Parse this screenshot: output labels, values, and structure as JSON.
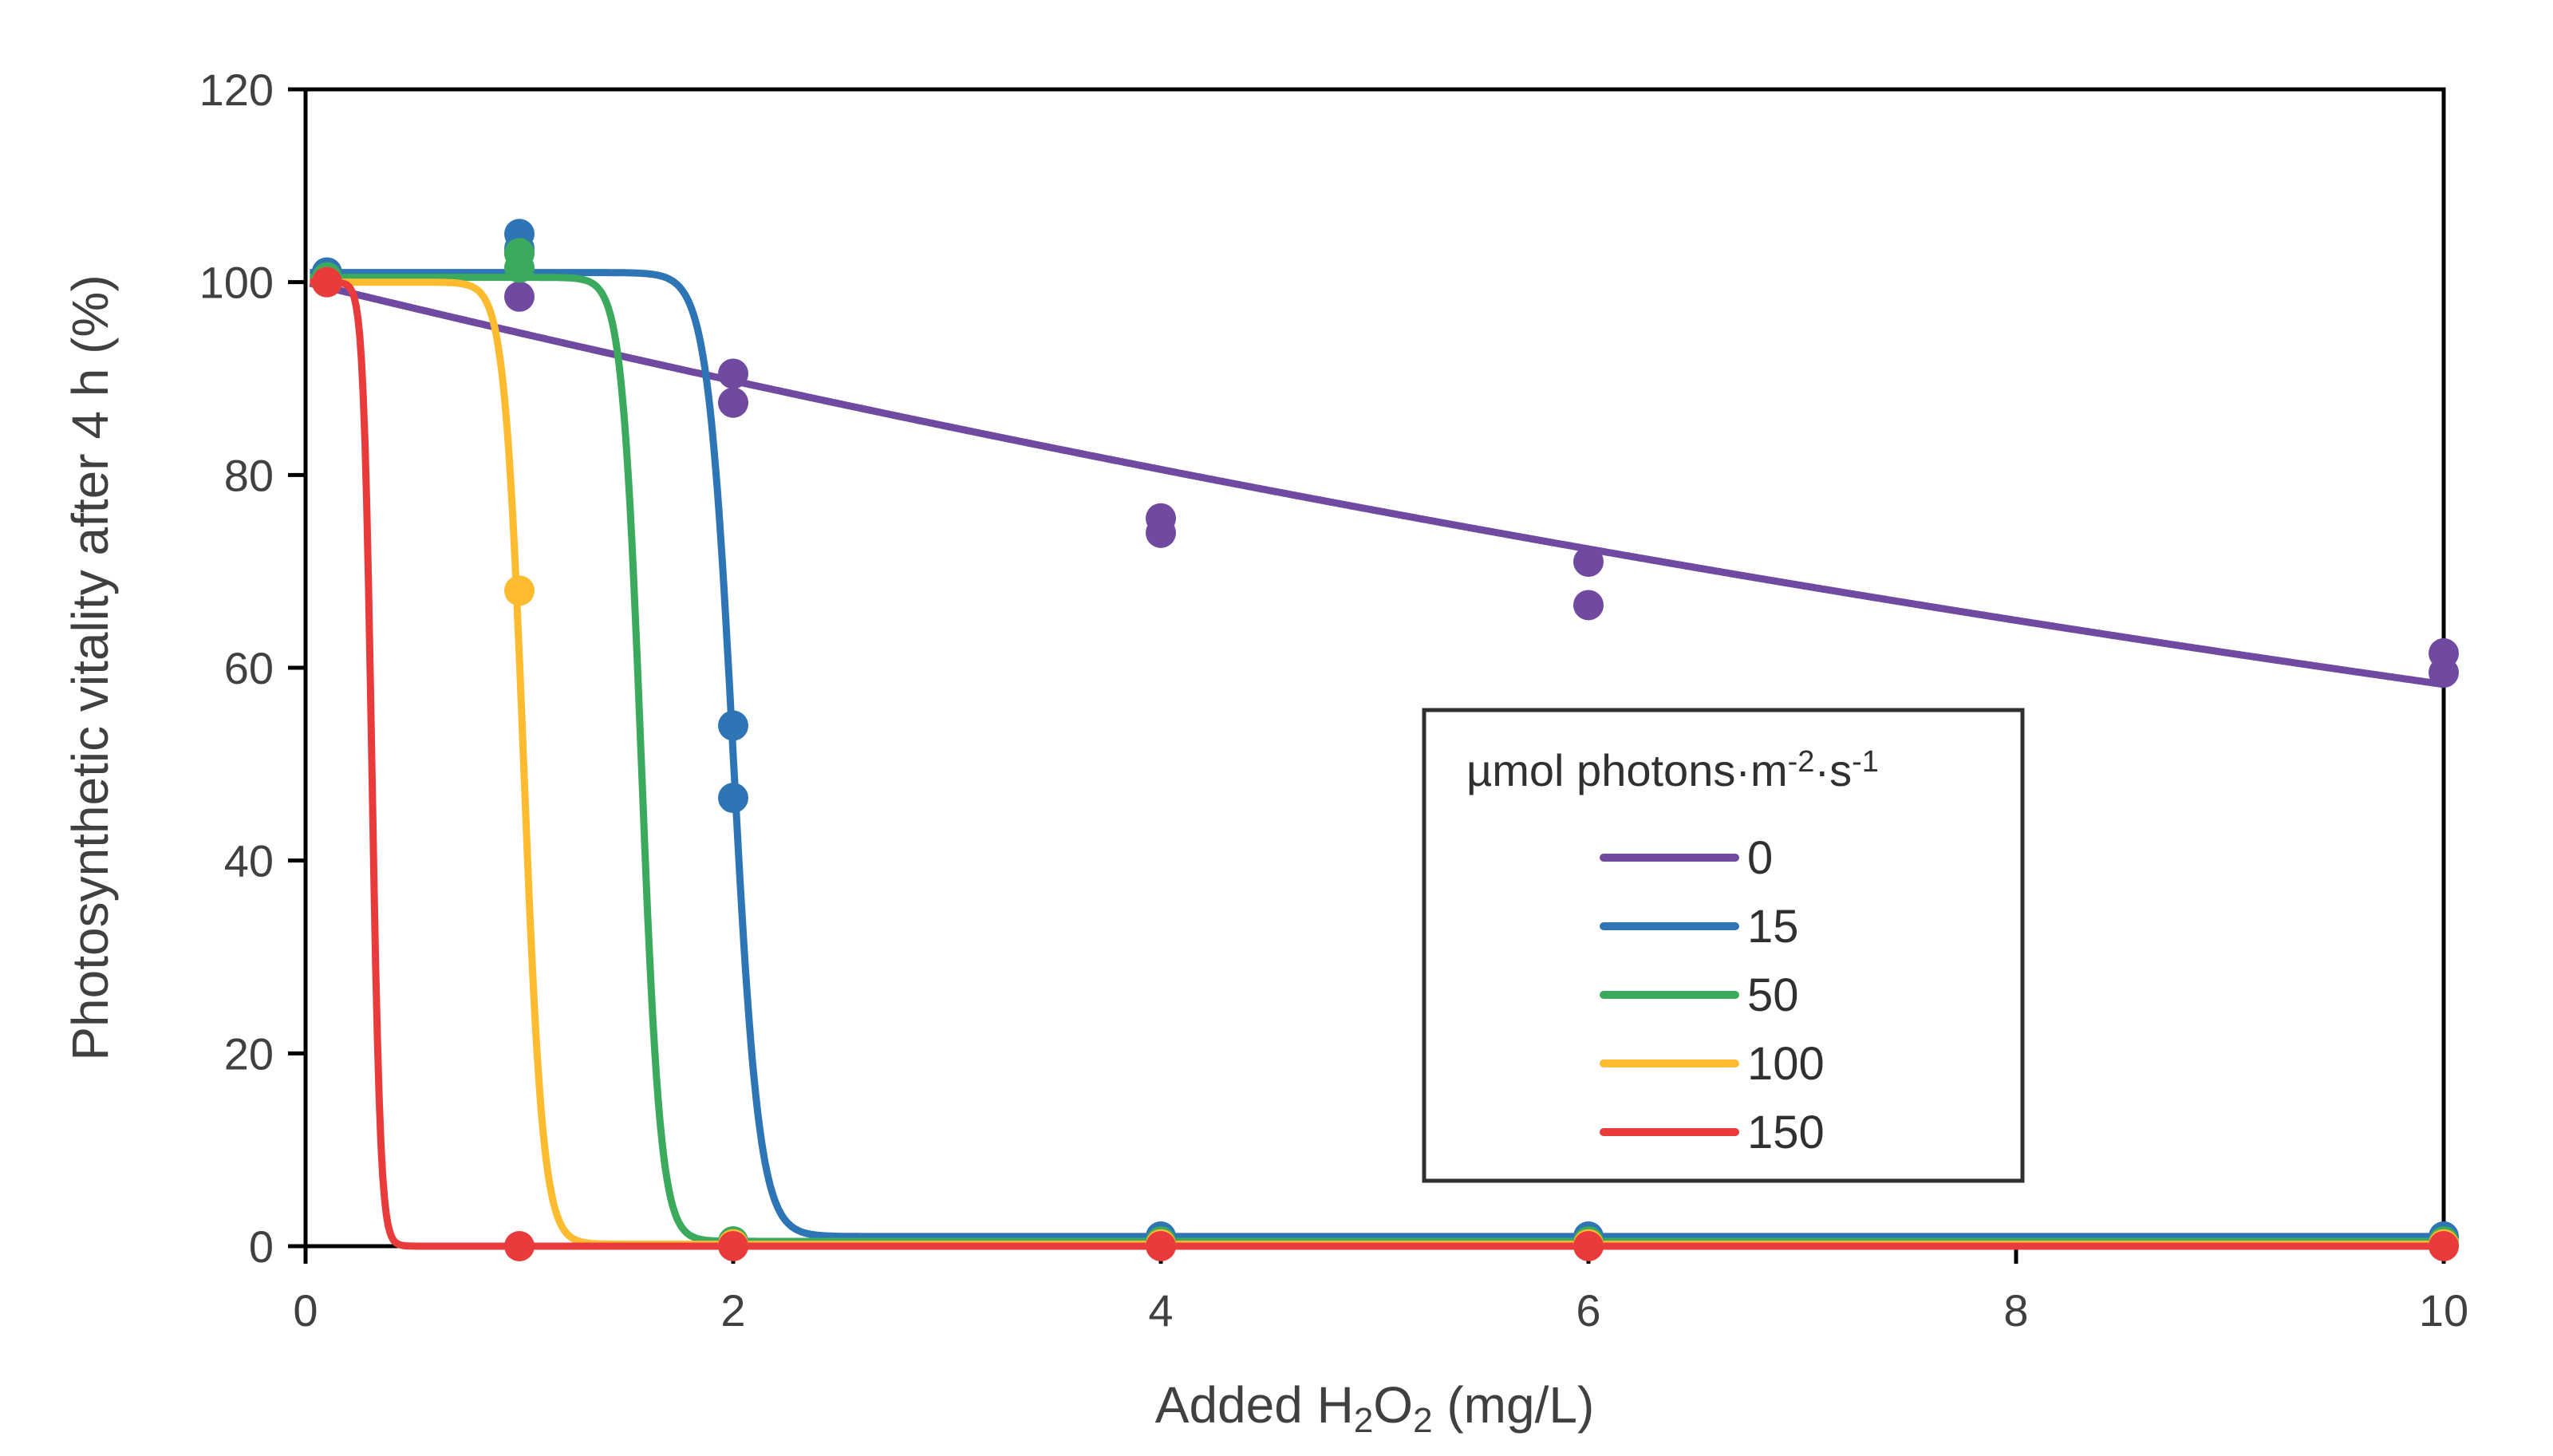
{
  "chart_data": {
    "type": "scatter",
    "xlabel_parts": {
      "prefix": "Added H",
      "sub1": "2",
      "mid": "O",
      "sub2": "2",
      "suffix": " (mg/L)"
    },
    "ylabel": "Photosynthetic vitality after 4 h (%)",
    "xlim": [
      0,
      10
    ],
    "ylim": [
      0,
      120
    ],
    "xticks": [
      "0",
      "2",
      "4",
      "6",
      "8",
      "10"
    ],
    "yticks": [
      "0",
      "20",
      "40",
      "60",
      "80",
      "100",
      "120"
    ],
    "legend": {
      "title_parts": {
        "prefix": "µmol photons·m",
        "sup1": "-2",
        "mid": "·s",
        "sup2": "-1"
      },
      "position": "center-right"
    },
    "series": [
      {
        "name": "0",
        "color": "#7049A1",
        "fit": {
          "model": "exponential",
          "a": 100,
          "k": 0.054
        },
        "points": [
          [
            0.1,
            101
          ],
          [
            1,
            98.5
          ],
          [
            1,
            103
          ],
          [
            2,
            90.5
          ],
          [
            2,
            87.5
          ],
          [
            4,
            75.5
          ],
          [
            4,
            74
          ],
          [
            6,
            71
          ],
          [
            6,
            66.5
          ],
          [
            10,
            61.5
          ],
          [
            10,
            59.5
          ]
        ]
      },
      {
        "name": "15",
        "color": "#2E75B6",
        "fit": {
          "model": "logistic",
          "top": 101,
          "bottom": 1,
          "x50": 2.0,
          "slope": 0.06
        },
        "points": [
          [
            0.1,
            101
          ],
          [
            1,
            105
          ],
          [
            1,
            103.5
          ],
          [
            2,
            54
          ],
          [
            2,
            46.5
          ],
          [
            4,
            1
          ],
          [
            6,
            1
          ],
          [
            10,
            1
          ]
        ]
      },
      {
        "name": "50",
        "color": "#3BAA5C",
        "fit": {
          "model": "logistic",
          "top": 100.5,
          "bottom": 0.5,
          "x50": 1.57,
          "slope": 0.045
        },
        "points": [
          [
            0.1,
            100.5
          ],
          [
            1,
            103
          ],
          [
            1,
            101.5
          ],
          [
            2,
            0.5
          ],
          [
            4,
            0.5
          ],
          [
            6,
            0.5
          ],
          [
            10,
            0.5
          ]
        ]
      },
      {
        "name": "100",
        "color": "#FDBB2F",
        "fit": {
          "model": "logistic",
          "top": 100,
          "bottom": 0.2,
          "x50": 1.02,
          "slope": 0.045
        },
        "points": [
          [
            0.1,
            100
          ],
          [
            1,
            68
          ],
          [
            2,
            0.2
          ],
          [
            4,
            0.2
          ],
          [
            6,
            0.2
          ],
          [
            10,
            0.2
          ]
        ]
      },
      {
        "name": "150",
        "color": "#E93B3B",
        "fit": {
          "model": "logistic",
          "top": 100,
          "bottom": 0,
          "x50": 0.31,
          "slope": 0.02
        },
        "points": [
          [
            0.1,
            100
          ],
          [
            1,
            0
          ],
          [
            2,
            0
          ],
          [
            4,
            0
          ],
          [
            6,
            0
          ],
          [
            10,
            0
          ]
        ]
      }
    ]
  }
}
